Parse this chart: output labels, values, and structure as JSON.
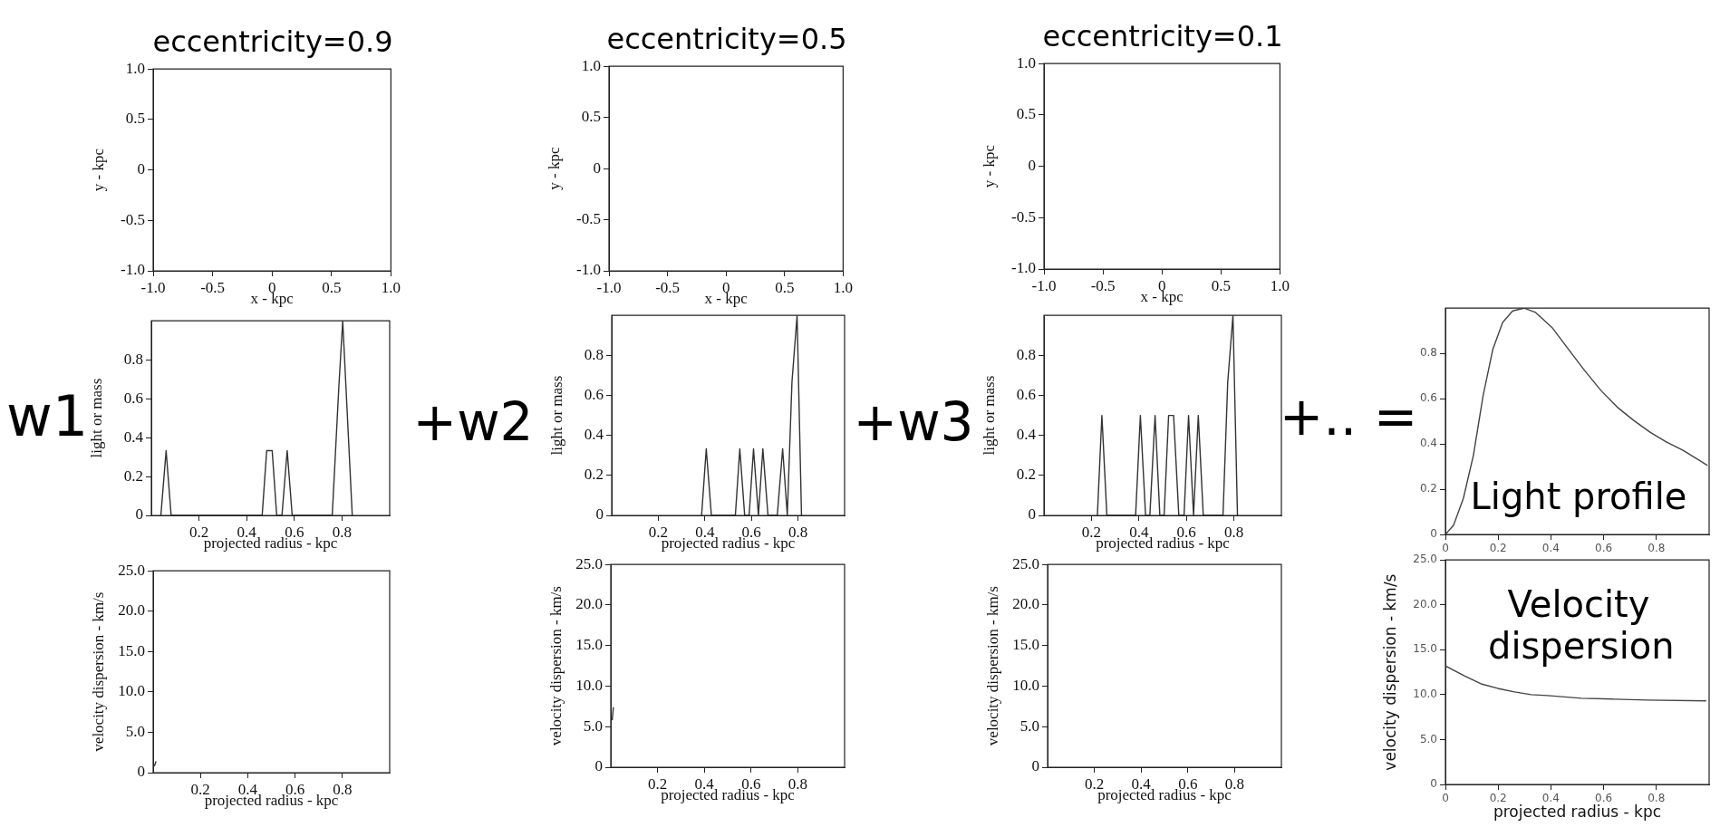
{
  "chart_data": [
    {
      "type": "scatter",
      "title": "eccentricity=0.9",
      "xlabel": "x - kpc",
      "ylabel": "y - kpc",
      "xlim": [
        -1,
        1
      ],
      "ylim": [
        -1,
        1
      ],
      "xticks": [
        {
          "value": -1,
          "label": "-1.0"
        },
        {
          "value": -0.5,
          "label": "-0.5"
        },
        0,
        0.5,
        {
          "value": 1,
          "label": "1.0"
        }
      ],
      "yticks": [
        {
          "value": -1,
          "label": "-1.0"
        },
        {
          "value": -0.5,
          "label": "-0.5"
        },
        0,
        0.5,
        {
          "value": 1,
          "label": "1.0"
        }
      ]
    },
    {
      "type": "scatter",
      "title": "eccentricity=0.5",
      "xlabel": "x - kpc",
      "ylabel": "y - kpc",
      "xlim": [
        -1,
        1
      ],
      "ylim": [
        -1,
        1
      ],
      "xticks": [
        {
          "value": -1,
          "label": "-1.0"
        },
        {
          "value": -0.5,
          "label": "-0.5"
        },
        0,
        0.5,
        {
          "value": 1,
          "label": "1.0"
        }
      ],
      "yticks": [
        {
          "value": -1,
          "label": "-1.0"
        },
        {
          "value": -0.5,
          "label": "-0.5"
        },
        0,
        0.5,
        {
          "value": 1,
          "label": "1.0"
        }
      ]
    },
    {
      "type": "scatter",
      "title": "eccentricity=0.1",
      "xlabel": "x - kpc",
      "ylabel": "y - kpc",
      "xlim": [
        -1,
        1
      ],
      "ylim": [
        -1,
        1
      ],
      "xticks": [
        {
          "value": -1,
          "label": "-1.0"
        },
        {
          "value": -0.5,
          "label": "-0.5"
        },
        0,
        0.5,
        {
          "value": 1,
          "label": "1.0"
        }
      ],
      "yticks": [
        {
          "value": -1,
          "label": "-1.0"
        },
        {
          "value": -0.5,
          "label": "-0.5"
        },
        0,
        0.5,
        {
          "value": 1,
          "label": "1.0"
        }
      ]
    },
    {
      "type": "line",
      "xlabel": "projected radius - kpc",
      "ylabel": "light or mass",
      "xlim": [
        0,
        1
      ],
      "ylim": [
        0,
        1
      ],
      "xticks": [
        0.2,
        0.4,
        0.6,
        0.8
      ],
      "yticks": [
        0,
        0.2,
        0.4,
        0.6,
        0.8
      ],
      "annotations": [
        "w1"
      ],
      "series": [
        {
          "color": "#333333",
          "x": [
            0.04,
            0.062,
            0.083,
            0.465,
            0.484,
            0.507,
            0.526,
            0.548,
            0.57,
            0.591,
            0.759,
            0.787,
            0.803,
            0.843
          ],
          "values": [
            0,
            0.333,
            0,
            0,
            0.333,
            0.333,
            0,
            0,
            0.333,
            0,
            0,
            0.667,
            1,
            0
          ]
        }
      ]
    },
    {
      "type": "line",
      "xlabel": "projected radius - kpc",
      "ylabel": "light or mass",
      "xlim": [
        0,
        1
      ],
      "ylim": [
        0,
        1
      ],
      "xticks": [
        0.2,
        0.4,
        0.6,
        0.8
      ],
      "yticks": [
        0,
        0.2,
        0.4,
        0.6,
        0.8
      ],
      "annotations": [
        "+w2"
      ],
      "series": [
        {
          "color": "#333333",
          "x": [
            0.386,
            0.406,
            0.428,
            0.531,
            0.55,
            0.571,
            0.59,
            0.609,
            0.63,
            0.649,
            0.671,
            0.711,
            0.734,
            0.754,
            0.774,
            0.796,
            0.815
          ],
          "values": [
            0,
            0.333,
            0,
            0,
            0.333,
            0,
            0,
            0.333,
            0,
            0.333,
            0,
            0,
            0.333,
            0,
            0.667,
            1,
            0
          ]
        }
      ]
    },
    {
      "type": "line",
      "xlabel": "projected radius - kpc",
      "ylabel": "light or mass",
      "xlim": [
        0,
        1
      ],
      "ylim": [
        0,
        1
      ],
      "xticks": [
        0.2,
        0.4,
        0.6,
        0.8
      ],
      "yticks": [
        0,
        0.2,
        0.4,
        0.6,
        0.8
      ],
      "annotations": [
        "+w3"
      ],
      "series": [
        {
          "color": "#333333",
          "x": [
            0.225,
            0.244,
            0.265,
            0.386,
            0.406,
            0.428,
            0.446,
            0.468,
            0.488,
            0.506,
            0.525,
            0.546,
            0.568,
            0.59,
            0.609,
            0.63,
            0.65,
            0.671,
            0.754,
            0.774,
            0.796,
            0.815
          ],
          "values": [
            0,
            0.5,
            0,
            0,
            0.5,
            0,
            0,
            0.5,
            0,
            0,
            0.5,
            0.5,
            0,
            0,
            0.5,
            0,
            0.5,
            0,
            0,
            0.667,
            1,
            0
          ]
        }
      ]
    },
    {
      "type": "line",
      "xlim": [
        0,
        1
      ],
      "ylim": [
        0,
        1
      ],
      "xticks": [
        0,
        0.2,
        0.4,
        0.6,
        0.8
      ],
      "yticks": [
        0,
        0.2,
        0.4,
        0.6,
        0.8
      ],
      "annotations": [
        "+.. =",
        "Light profile"
      ],
      "series": [
        {
          "color": "#444444",
          "x": [
            0,
            0.031,
            0.068,
            0.106,
            0.143,
            0.18,
            0.217,
            0.255,
            0.298,
            0.342,
            0.404,
            0.466,
            0.528,
            0.59,
            0.652,
            0.714,
            0.776,
            0.839,
            0.901,
            0.994
          ],
          "values": [
            0,
            0.041,
            0.159,
            0.349,
            0.614,
            0.819,
            0.937,
            0.988,
            1,
            0.981,
            0.915,
            0.819,
            0.724,
            0.636,
            0.562,
            0.504,
            0.452,
            0.408,
            0.372,
            0.305
          ]
        }
      ]
    },
    {
      "type": "line",
      "xlabel": "projected radius - kpc",
      "ylabel": "velocity dispersion - km/s",
      "xlim": [
        0,
        1
      ],
      "ylim": [
        0,
        25
      ],
      "xticks": [
        0.2,
        0.4,
        0.6,
        0.8
      ],
      "yticks": [
        0,
        {
          "value": 5,
          "label": "5.0"
        },
        {
          "value": 10,
          "label": "10.0"
        },
        {
          "value": 15,
          "label": "15.0"
        },
        {
          "value": 20,
          "label": "20.0"
        },
        {
          "value": 25,
          "label": "25.0"
        }
      ],
      "series": [
        {
          "color": "#333333",
          "x": [
            0.005,
            0.012
          ],
          "values": [
            0.8,
            1.4
          ]
        }
      ]
    },
    {
      "type": "line",
      "xlabel": "projected radius - kpc",
      "ylabel": "velocity dispersion - km/s",
      "xlim": [
        0,
        1
      ],
      "ylim": [
        0,
        25
      ],
      "xticks": [
        0.2,
        0.4,
        0.6,
        0.8
      ],
      "yticks": [
        0,
        {
          "value": 5,
          "label": "5.0"
        },
        {
          "value": 10,
          "label": "10.0"
        },
        {
          "value": 15,
          "label": "15.0"
        },
        {
          "value": 20,
          "label": "20.0"
        },
        {
          "value": 25,
          "label": "25.0"
        }
      ],
      "series": [
        {
          "color": "#333333",
          "x": [
            0.006,
            0.011
          ],
          "values": [
            5.8,
            7.4
          ]
        }
      ]
    },
    {
      "type": "line",
      "xlabel": "projected radius - kpc",
      "ylabel": "velocity dispersion - km/s",
      "xlim": [
        0,
        1
      ],
      "ylim": [
        0,
        25
      ],
      "xticks": [
        0.2,
        0.4,
        0.6,
        0.8
      ],
      "yticks": [
        0,
        {
          "value": 5,
          "label": "5.0"
        },
        {
          "value": 10,
          "label": "10.0"
        },
        {
          "value": 15,
          "label": "15.0"
        },
        {
          "value": 20,
          "label": "20.0"
        },
        {
          "value": 25,
          "label": "25.0"
        }
      ]
    },
    {
      "type": "line",
      "xlabel": "projected radius - kpc",
      "ylabel": "velocity dispersion - km/s",
      "xlim": [
        0,
        1
      ],
      "ylim": [
        0,
        25
      ],
      "xticks": [
        0,
        0.2,
        0.4,
        0.6,
        0.8
      ],
      "yticks": [
        0,
        {
          "value": 5,
          "label": "5.0"
        },
        {
          "value": 10,
          "label": "10.0"
        },
        {
          "value": 15,
          "label": "15.0"
        },
        {
          "value": 20,
          "label": "20.0"
        },
        {
          "value": 25,
          "label": "25.0"
        }
      ],
      "annotations": [
        "Velocity dispersion"
      ],
      "series": [
        {
          "color": "#444444",
          "x": [
            0,
            0.072,
            0.135,
            0.198,
            0.262,
            0.325,
            0.388,
            0.515,
            0.641,
            0.767,
            0.989
          ],
          "values": [
            13.2,
            12.1,
            11.2,
            10.7,
            10.3,
            10,
            9.9,
            9.6,
            9.5,
            9.4,
            9.3
          ]
        }
      ]
    }
  ]
}
